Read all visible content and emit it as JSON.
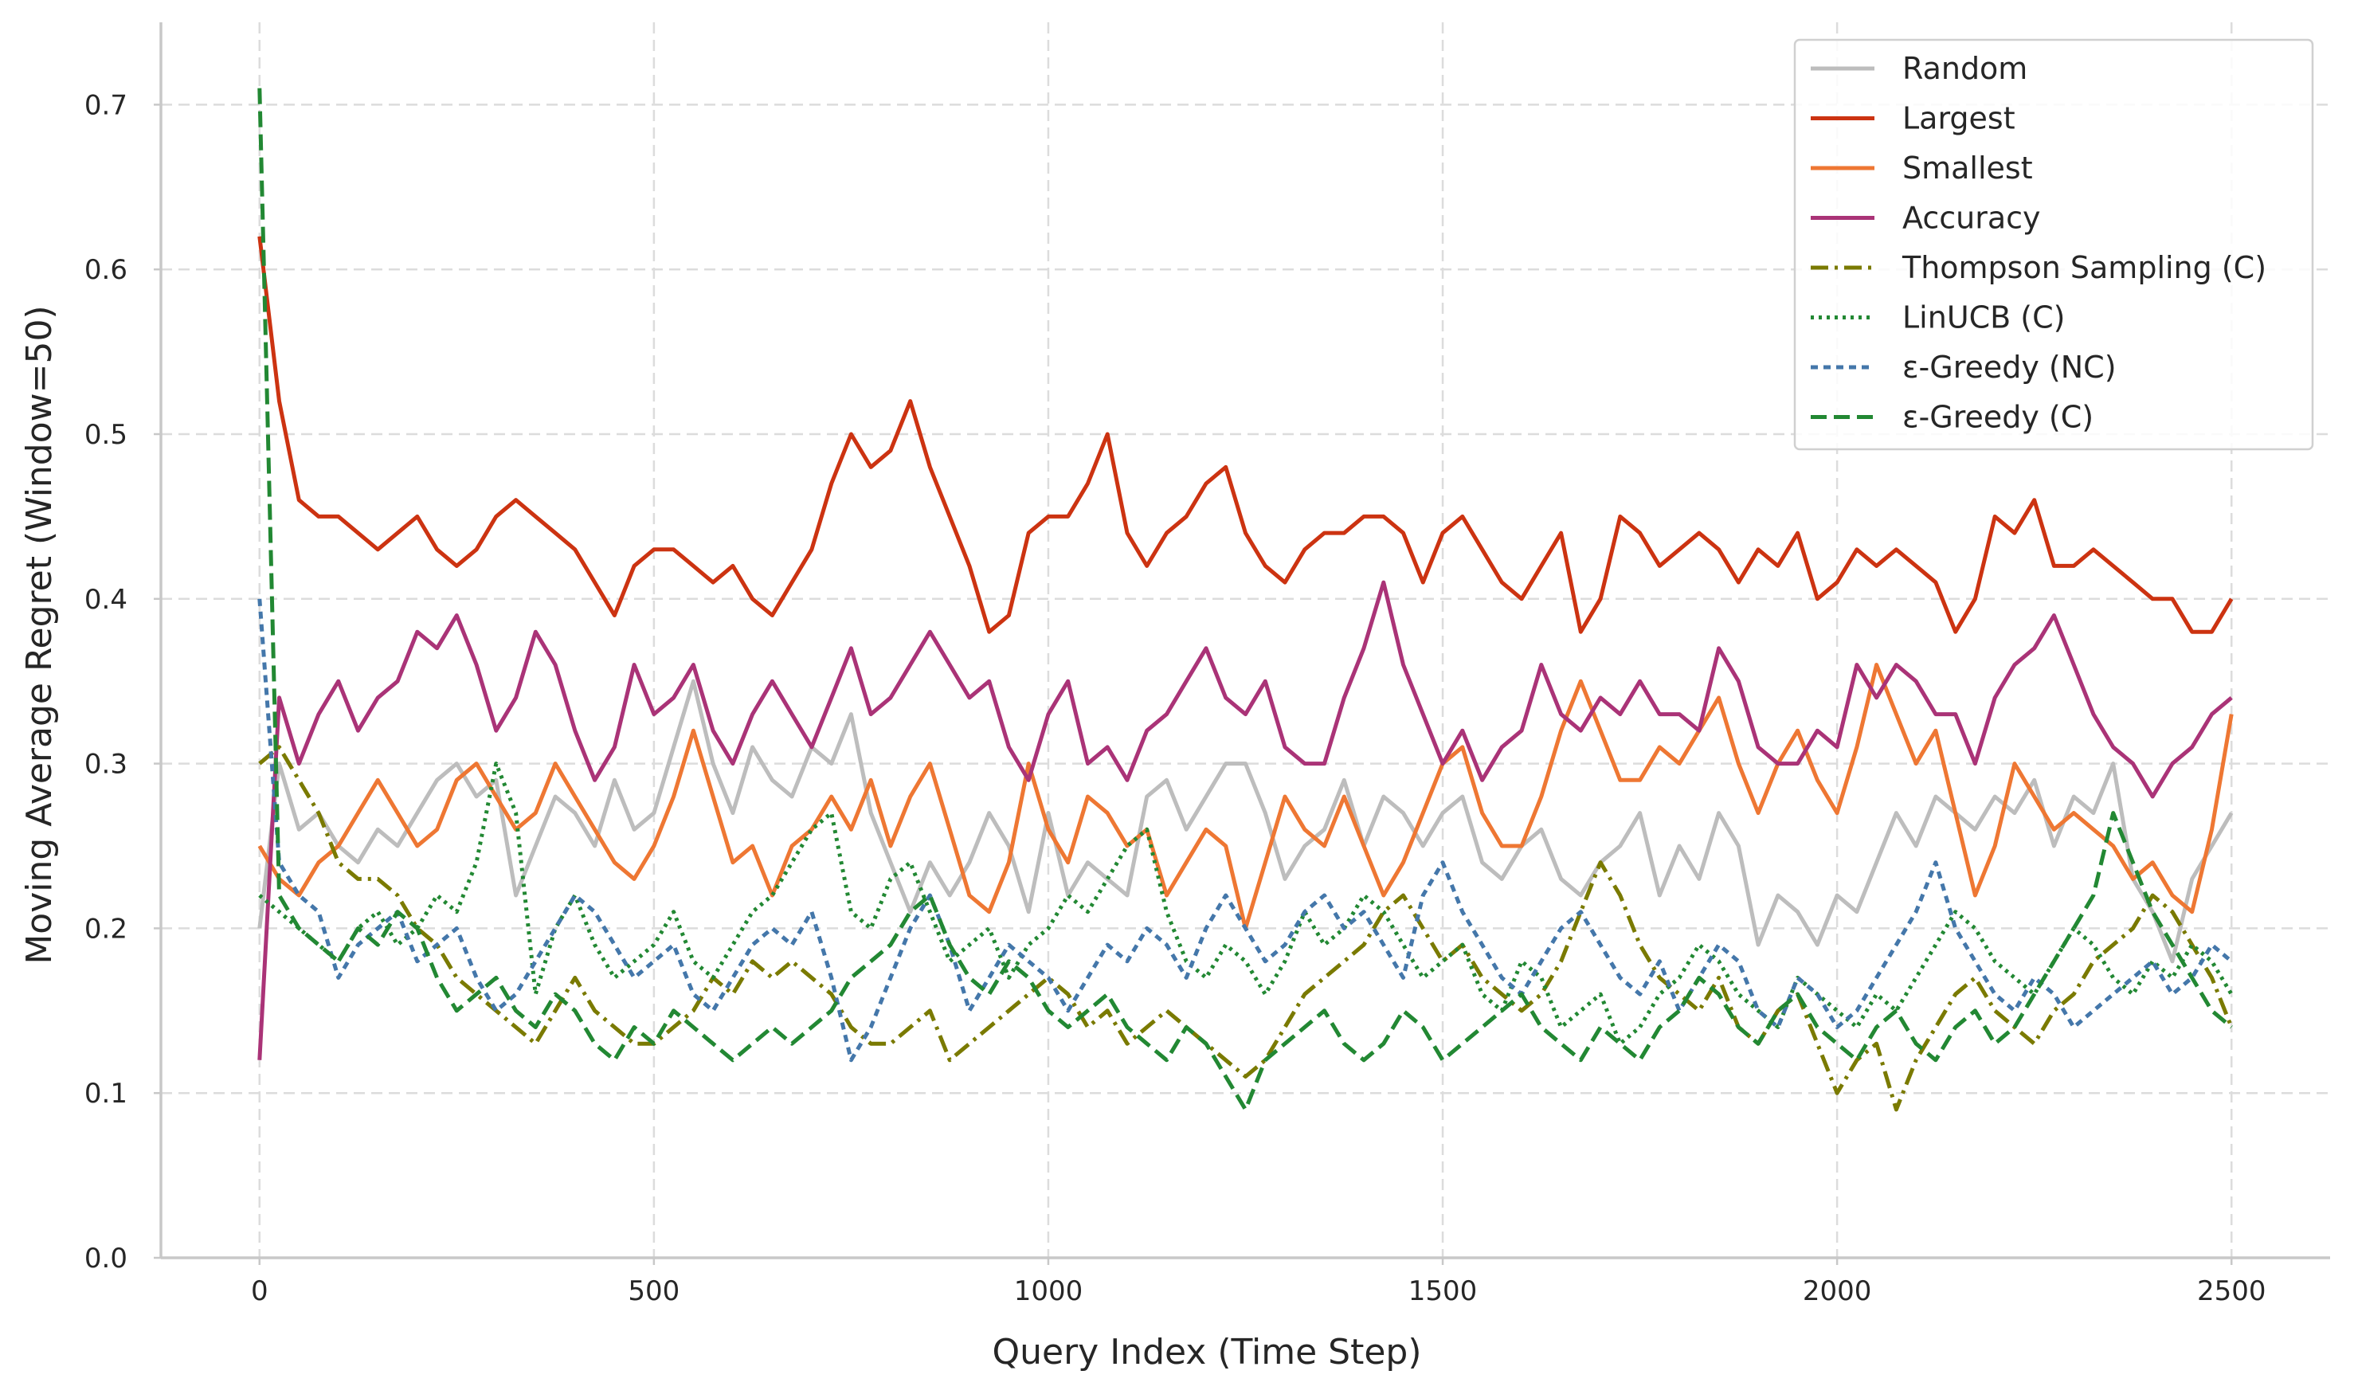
{
  "chart_data": {
    "type": "line",
    "title": "",
    "xlabel": "Query Index (Time Step)",
    "ylabel": "Moving Average Regret (Window=50)",
    "xlim": [
      -125,
      2625
    ],
    "ylim": [
      0.0,
      0.75
    ],
    "xticks": [
      0,
      500,
      1000,
      1500,
      2000,
      2500
    ],
    "yticks": [
      0.0,
      0.1,
      0.2,
      0.3,
      0.4,
      0.5,
      0.6,
      0.7
    ],
    "xtick_labels": [
      "0",
      "500",
      "1000",
      "1500",
      "2000",
      "2500"
    ],
    "ytick_labels": [
      "0.0",
      "0.1",
      "0.2",
      "0.3",
      "0.4",
      "0.5",
      "0.6",
      "0.7"
    ],
    "grid": true,
    "legend_position": "top-right",
    "x": [
      0,
      25,
      50,
      75,
      100,
      125,
      150,
      175,
      200,
      225,
      250,
      275,
      300,
      325,
      350,
      375,
      400,
      425,
      450,
      475,
      500,
      525,
      550,
      575,
      600,
      625,
      650,
      675,
      700,
      725,
      750,
      775,
      800,
      825,
      850,
      875,
      900,
      925,
      950,
      975,
      1000,
      1025,
      1050,
      1075,
      1100,
      1125,
      1150,
      1175,
      1200,
      1225,
      1250,
      1275,
      1300,
      1325,
      1350,
      1375,
      1400,
      1425,
      1450,
      1475,
      1500,
      1525,
      1550,
      1575,
      1600,
      1625,
      1650,
      1675,
      1700,
      1725,
      1750,
      1775,
      1800,
      1825,
      1850,
      1875,
      1900,
      1925,
      1950,
      1975,
      2000,
      2025,
      2050,
      2075,
      2100,
      2125,
      2150,
      2175,
      2200,
      2225,
      2250,
      2275,
      2300,
      2325,
      2350,
      2375,
      2400,
      2425,
      2450,
      2475,
      2500
    ],
    "series": [
      {
        "name": "Random",
        "color": "#bdbdbd",
        "dash": "solid",
        "values": [
          0.2,
          0.3,
          0.26,
          0.27,
          0.25,
          0.24,
          0.26,
          0.25,
          0.27,
          0.29,
          0.3,
          0.28,
          0.29,
          0.22,
          0.25,
          0.28,
          0.27,
          0.25,
          0.29,
          0.26,
          0.27,
          0.31,
          0.35,
          0.3,
          0.27,
          0.31,
          0.29,
          0.28,
          0.31,
          0.3,
          0.33,
          0.27,
          0.24,
          0.21,
          0.24,
          0.22,
          0.24,
          0.27,
          0.25,
          0.21,
          0.27,
          0.22,
          0.24,
          0.23,
          0.22,
          0.28,
          0.29,
          0.26,
          0.28,
          0.3,
          0.3,
          0.27,
          0.23,
          0.25,
          0.26,
          0.29,
          0.25,
          0.28,
          0.27,
          0.25,
          0.27,
          0.28,
          0.24,
          0.23,
          0.25,
          0.26,
          0.23,
          0.22,
          0.24,
          0.25,
          0.27,
          0.22,
          0.25,
          0.23,
          0.27,
          0.25,
          0.19,
          0.22,
          0.21,
          0.19,
          0.22,
          0.21,
          0.24,
          0.27,
          0.25,
          0.28,
          0.27,
          0.26,
          0.28,
          0.27,
          0.29,
          0.25,
          0.28,
          0.27,
          0.3,
          0.23,
          0.21,
          0.18,
          0.23,
          0.25,
          0.27
        ]
      },
      {
        "name": "Largest",
        "color": "#cc3311",
        "dash": "solid",
        "values": [
          0.62,
          0.52,
          0.46,
          0.45,
          0.45,
          0.44,
          0.43,
          0.44,
          0.45,
          0.43,
          0.42,
          0.43,
          0.45,
          0.46,
          0.45,
          0.44,
          0.43,
          0.41,
          0.39,
          0.42,
          0.43,
          0.43,
          0.42,
          0.41,
          0.42,
          0.4,
          0.39,
          0.41,
          0.43,
          0.47,
          0.5,
          0.48,
          0.49,
          0.52,
          0.48,
          0.45,
          0.42,
          0.38,
          0.39,
          0.44,
          0.45,
          0.45,
          0.47,
          0.5,
          0.44,
          0.42,
          0.44,
          0.45,
          0.47,
          0.48,
          0.44,
          0.42,
          0.41,
          0.43,
          0.44,
          0.44,
          0.45,
          0.45,
          0.44,
          0.41,
          0.44,
          0.45,
          0.43,
          0.41,
          0.4,
          0.42,
          0.44,
          0.38,
          0.4,
          0.45,
          0.44,
          0.42,
          0.43,
          0.44,
          0.43,
          0.41,
          0.43,
          0.42,
          0.44,
          0.4,
          0.41,
          0.43,
          0.42,
          0.43,
          0.42,
          0.41,
          0.38,
          0.4,
          0.45,
          0.44,
          0.46,
          0.42,
          0.42,
          0.43,
          0.42,
          0.41,
          0.4,
          0.4,
          0.38,
          0.38,
          0.4
        ]
      },
      {
        "name": "Smallest",
        "color": "#ee7733",
        "dash": "solid",
        "values": [
          0.25,
          0.23,
          0.22,
          0.24,
          0.25,
          0.27,
          0.29,
          0.27,
          0.25,
          0.26,
          0.29,
          0.3,
          0.28,
          0.26,
          0.27,
          0.3,
          0.28,
          0.26,
          0.24,
          0.23,
          0.25,
          0.28,
          0.32,
          0.28,
          0.24,
          0.25,
          0.22,
          0.25,
          0.26,
          0.28,
          0.26,
          0.29,
          0.25,
          0.28,
          0.3,
          0.26,
          0.22,
          0.21,
          0.24,
          0.3,
          0.26,
          0.24,
          0.28,
          0.27,
          0.25,
          0.26,
          0.22,
          0.24,
          0.26,
          0.25,
          0.2,
          0.24,
          0.28,
          0.26,
          0.25,
          0.28,
          0.25,
          0.22,
          0.24,
          0.27,
          0.3,
          0.31,
          0.27,
          0.25,
          0.25,
          0.28,
          0.32,
          0.35,
          0.32,
          0.29,
          0.29,
          0.31,
          0.3,
          0.32,
          0.34,
          0.3,
          0.27,
          0.3,
          0.32,
          0.29,
          0.27,
          0.31,
          0.36,
          0.33,
          0.3,
          0.32,
          0.27,
          0.22,
          0.25,
          0.3,
          0.28,
          0.26,
          0.27,
          0.26,
          0.25,
          0.23,
          0.24,
          0.22,
          0.21,
          0.26,
          0.33
        ]
      },
      {
        "name": "Accuracy",
        "color": "#aa3377",
        "dash": "solid",
        "values": [
          0.12,
          0.34,
          0.3,
          0.33,
          0.35,
          0.32,
          0.34,
          0.35,
          0.38,
          0.37,
          0.39,
          0.36,
          0.32,
          0.34,
          0.38,
          0.36,
          0.32,
          0.29,
          0.31,
          0.36,
          0.33,
          0.34,
          0.36,
          0.32,
          0.3,
          0.33,
          0.35,
          0.33,
          0.31,
          0.34,
          0.37,
          0.33,
          0.34,
          0.36,
          0.38,
          0.36,
          0.34,
          0.35,
          0.31,
          0.29,
          0.33,
          0.35,
          0.3,
          0.31,
          0.29,
          0.32,
          0.33,
          0.35,
          0.37,
          0.34,
          0.33,
          0.35,
          0.31,
          0.3,
          0.3,
          0.34,
          0.37,
          0.41,
          0.36,
          0.33,
          0.3,
          0.32,
          0.29,
          0.31,
          0.32,
          0.36,
          0.33,
          0.32,
          0.34,
          0.33,
          0.35,
          0.33,
          0.33,
          0.32,
          0.37,
          0.35,
          0.31,
          0.3,
          0.3,
          0.32,
          0.31,
          0.36,
          0.34,
          0.36,
          0.35,
          0.33,
          0.33,
          0.3,
          0.34,
          0.36,
          0.37,
          0.39,
          0.36,
          0.33,
          0.31,
          0.3,
          0.28,
          0.3,
          0.31,
          0.33,
          0.34
        ]
      },
      {
        "name": "Thompson Sampling (C)",
        "color": "#7a7a00",
        "dash": "dashdot",
        "values": [
          0.3,
          0.31,
          0.29,
          0.27,
          0.24,
          0.23,
          0.23,
          0.22,
          0.2,
          0.19,
          0.17,
          0.16,
          0.15,
          0.14,
          0.13,
          0.15,
          0.17,
          0.15,
          0.14,
          0.13,
          0.13,
          0.14,
          0.15,
          0.17,
          0.16,
          0.18,
          0.17,
          0.18,
          0.17,
          0.16,
          0.14,
          0.13,
          0.13,
          0.14,
          0.15,
          0.12,
          0.13,
          0.14,
          0.15,
          0.16,
          0.17,
          0.16,
          0.14,
          0.15,
          0.13,
          0.14,
          0.15,
          0.14,
          0.13,
          0.12,
          0.11,
          0.12,
          0.14,
          0.16,
          0.17,
          0.18,
          0.19,
          0.21,
          0.22,
          0.2,
          0.18,
          0.19,
          0.17,
          0.16,
          0.15,
          0.16,
          0.18,
          0.21,
          0.24,
          0.22,
          0.19,
          0.17,
          0.16,
          0.15,
          0.17,
          0.14,
          0.13,
          0.15,
          0.16,
          0.13,
          0.1,
          0.12,
          0.13,
          0.09,
          0.12,
          0.14,
          0.16,
          0.17,
          0.15,
          0.14,
          0.13,
          0.15,
          0.16,
          0.18,
          0.19,
          0.2,
          0.22,
          0.21,
          0.19,
          0.17,
          0.14
        ]
      },
      {
        "name": "LinUCB (C)",
        "color": "#228833",
        "dash": "dotted",
        "values": [
          0.22,
          0.21,
          0.2,
          0.19,
          0.18,
          0.2,
          0.21,
          0.19,
          0.2,
          0.22,
          0.21,
          0.24,
          0.3,
          0.27,
          0.16,
          0.2,
          0.22,
          0.19,
          0.17,
          0.18,
          0.19,
          0.21,
          0.18,
          0.17,
          0.19,
          0.21,
          0.22,
          0.24,
          0.26,
          0.27,
          0.21,
          0.2,
          0.23,
          0.24,
          0.21,
          0.18,
          0.19,
          0.2,
          0.17,
          0.19,
          0.2,
          0.22,
          0.21,
          0.23,
          0.25,
          0.26,
          0.21,
          0.18,
          0.17,
          0.19,
          0.18,
          0.16,
          0.18,
          0.21,
          0.19,
          0.2,
          0.22,
          0.21,
          0.19,
          0.17,
          0.18,
          0.19,
          0.16,
          0.15,
          0.18,
          0.17,
          0.14,
          0.15,
          0.16,
          0.13,
          0.14,
          0.16,
          0.17,
          0.19,
          0.18,
          0.16,
          0.15,
          0.14,
          0.17,
          0.16,
          0.15,
          0.14,
          0.16,
          0.15,
          0.17,
          0.19,
          0.21,
          0.2,
          0.18,
          0.17,
          0.16,
          0.18,
          0.2,
          0.19,
          0.17,
          0.16,
          0.18,
          0.17,
          0.19,
          0.18,
          0.16
        ]
      },
      {
        "name": "ε-Greedy (NC)",
        "color": "#4477aa",
        "dash": "dashed-short",
        "values": [
          0.4,
          0.24,
          0.22,
          0.21,
          0.17,
          0.19,
          0.2,
          0.21,
          0.18,
          0.19,
          0.2,
          0.17,
          0.15,
          0.16,
          0.18,
          0.2,
          0.22,
          0.21,
          0.19,
          0.17,
          0.18,
          0.19,
          0.16,
          0.15,
          0.17,
          0.19,
          0.2,
          0.19,
          0.21,
          0.17,
          0.12,
          0.14,
          0.17,
          0.2,
          0.22,
          0.19,
          0.15,
          0.17,
          0.19,
          0.18,
          0.17,
          0.15,
          0.17,
          0.19,
          0.18,
          0.2,
          0.19,
          0.17,
          0.2,
          0.22,
          0.2,
          0.18,
          0.19,
          0.21,
          0.22,
          0.2,
          0.21,
          0.19,
          0.17,
          0.22,
          0.24,
          0.21,
          0.19,
          0.17,
          0.16,
          0.18,
          0.2,
          0.21,
          0.19,
          0.17,
          0.16,
          0.18,
          0.15,
          0.17,
          0.19,
          0.18,
          0.15,
          0.14,
          0.17,
          0.16,
          0.14,
          0.15,
          0.17,
          0.19,
          0.21,
          0.24,
          0.2,
          0.18,
          0.16,
          0.15,
          0.17,
          0.16,
          0.14,
          0.15,
          0.16,
          0.17,
          0.18,
          0.16,
          0.17,
          0.19,
          0.18
        ]
      },
      {
        "name": "ε-Greedy (C)",
        "color": "#228833",
        "dash": "dashed",
        "values": [
          0.71,
          0.22,
          0.2,
          0.19,
          0.18,
          0.2,
          0.19,
          0.21,
          0.2,
          0.17,
          0.15,
          0.16,
          0.17,
          0.15,
          0.14,
          0.16,
          0.15,
          0.13,
          0.12,
          0.14,
          0.13,
          0.15,
          0.14,
          0.13,
          0.12,
          0.13,
          0.14,
          0.13,
          0.14,
          0.15,
          0.17,
          0.18,
          0.19,
          0.21,
          0.22,
          0.19,
          0.17,
          0.16,
          0.18,
          0.17,
          0.15,
          0.14,
          0.15,
          0.16,
          0.14,
          0.13,
          0.12,
          0.14,
          0.13,
          0.11,
          0.09,
          0.12,
          0.13,
          0.14,
          0.15,
          0.13,
          0.12,
          0.13,
          0.15,
          0.14,
          0.12,
          0.13,
          0.14,
          0.15,
          0.16,
          0.14,
          0.13,
          0.12,
          0.14,
          0.13,
          0.12,
          0.14,
          0.15,
          0.17,
          0.16,
          0.14,
          0.13,
          0.15,
          0.16,
          0.14,
          0.13,
          0.12,
          0.14,
          0.15,
          0.13,
          0.12,
          0.14,
          0.15,
          0.13,
          0.14,
          0.16,
          0.18,
          0.2,
          0.22,
          0.27,
          0.24,
          0.21,
          0.19,
          0.17,
          0.15,
          0.14
        ]
      }
    ]
  }
}
